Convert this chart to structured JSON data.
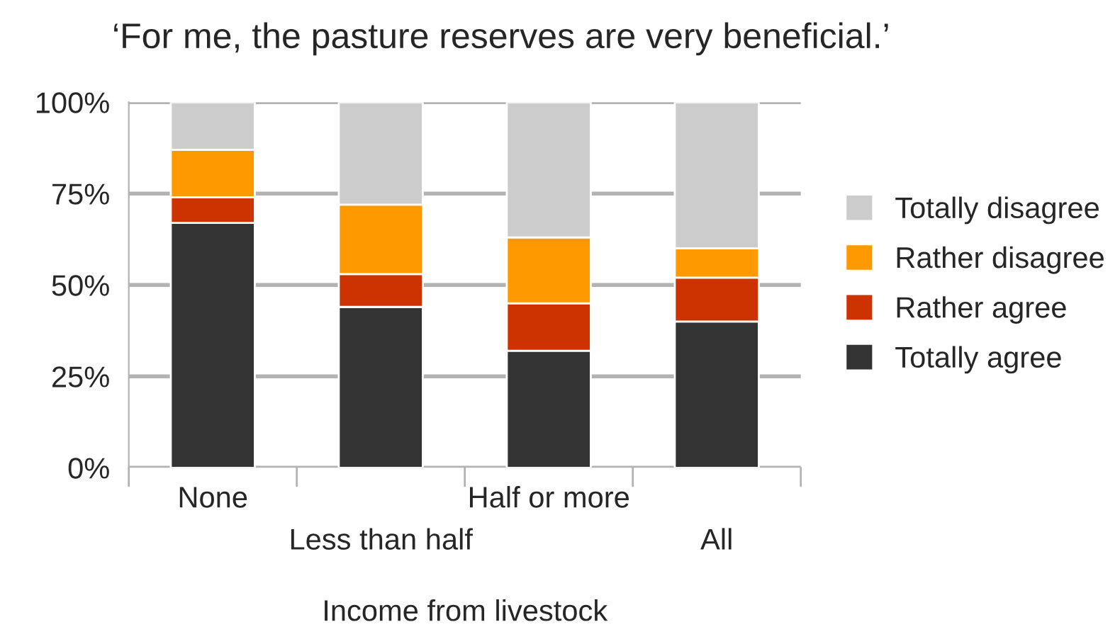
{
  "chart_data": {
    "type": "bar",
    "stacked": true,
    "title": "‘For me, the pasture reserves are very beneficial.’",
    "xlabel": "Income from livestock",
    "categories": [
      "None",
      "Less than half",
      "Half or more",
      "All"
    ],
    "series": [
      {
        "name": "Totally agree",
        "color": "#333333",
        "values": [
          67,
          44,
          32,
          40
        ]
      },
      {
        "name": "Rather agree",
        "color": "#cc3300",
        "values": [
          7,
          9,
          13,
          12
        ]
      },
      {
        "name": "Rather disagree",
        "color": "#ff9900",
        "values": [
          13,
          19,
          18,
          8
        ]
      },
      {
        "name": "Totally disagree",
        "color": "#cccccc",
        "values": [
          13,
          28,
          37,
          40
        ]
      }
    ],
    "ylim": [
      0,
      100
    ],
    "yticks": [
      {
        "value": 0,
        "label": "0%"
      },
      {
        "value": 25,
        "label": "25%"
      },
      {
        "value": 50,
        "label": "50%"
      },
      {
        "value": 75,
        "label": "75%"
      },
      {
        "value": 100,
        "label": "100%"
      }
    ],
    "grid": "y",
    "legend": "right"
  }
}
